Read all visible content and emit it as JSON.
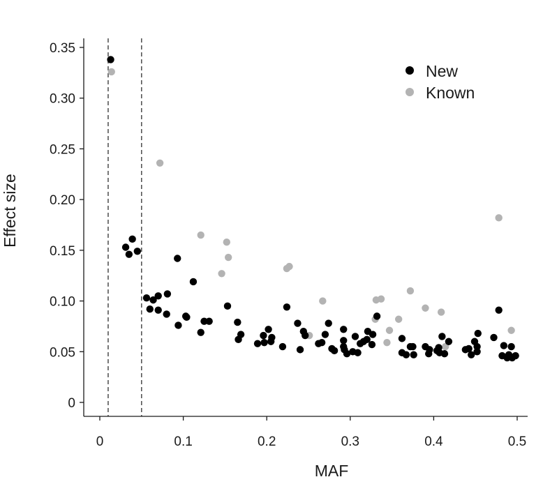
{
  "chart_data": {
    "type": "scatter",
    "xlabel": "MAF",
    "ylabel": "Effect size",
    "xlim": [
      0,
      0.5
    ],
    "ylim": [
      0,
      0.35
    ],
    "x_ticks": [
      0,
      0.1,
      0.2,
      0.3,
      0.4,
      0.5
    ],
    "x_tick_labels": [
      "0",
      "0.1",
      "0.2",
      "0.3",
      "0.4",
      "0.5"
    ],
    "y_ticks": [
      0,
      0.05,
      0.1,
      0.15,
      0.2,
      0.25,
      0.3,
      0.35
    ],
    "y_tick_labels": [
      "0",
      "0.05",
      "0.10",
      "0.15",
      "0.20",
      "0.25",
      "0.30",
      "0.35"
    ],
    "vlines": [
      0.01,
      0.05
    ],
    "vline_style": "dashed",
    "legend_position": "top-right",
    "series": [
      {
        "name": "New",
        "color": "#000000",
        "points": [
          [
            0.013,
            0.338
          ],
          [
            0.031,
            0.153
          ],
          [
            0.035,
            0.146
          ],
          [
            0.039,
            0.161
          ],
          [
            0.045,
            0.149
          ],
          [
            0.056,
            0.103
          ],
          [
            0.06,
            0.092
          ],
          [
            0.064,
            0.101
          ],
          [
            0.07,
            0.105
          ],
          [
            0.07,
            0.091
          ],
          [
            0.08,
            0.087
          ],
          [
            0.081,
            0.107
          ],
          [
            0.093,
            0.142
          ],
          [
            0.094,
            0.076
          ],
          [
            0.103,
            0.085
          ],
          [
            0.104,
            0.084
          ],
          [
            0.112,
            0.119
          ],
          [
            0.121,
            0.069
          ],
          [
            0.125,
            0.08
          ],
          [
            0.131,
            0.08
          ],
          [
            0.153,
            0.095
          ],
          [
            0.165,
            0.079
          ],
          [
            0.166,
            0.062
          ],
          [
            0.169,
            0.067
          ],
          [
            0.189,
            0.058
          ],
          [
            0.196,
            0.066
          ],
          [
            0.197,
            0.059
          ],
          [
            0.202,
            0.072
          ],
          [
            0.205,
            0.06
          ],
          [
            0.206,
            0.064
          ],
          [
            0.219,
            0.055
          ],
          [
            0.224,
            0.094
          ],
          [
            0.237,
            0.078
          ],
          [
            0.24,
            0.052
          ],
          [
            0.244,
            0.07
          ],
          [
            0.246,
            0.066
          ],
          [
            0.262,
            0.058
          ],
          [
            0.266,
            0.059
          ],
          [
            0.27,
            0.067
          ],
          [
            0.274,
            0.078
          ],
          [
            0.278,
            0.053
          ],
          [
            0.281,
            0.051
          ],
          [
            0.292,
            0.072
          ],
          [
            0.292,
            0.061
          ],
          [
            0.292,
            0.055
          ],
          [
            0.293,
            0.052
          ],
          [
            0.296,
            0.048
          ],
          [
            0.303,
            0.05
          ],
          [
            0.306,
            0.065
          ],
          [
            0.309,
            0.049
          ],
          [
            0.312,
            0.058
          ],
          [
            0.316,
            0.06
          ],
          [
            0.32,
            0.062
          ],
          [
            0.321,
            0.07
          ],
          [
            0.326,
            0.057
          ],
          [
            0.327,
            0.067
          ],
          [
            0.332,
            0.085
          ],
          [
            0.362,
            0.063
          ],
          [
            0.362,
            0.049
          ],
          [
            0.367,
            0.047
          ],
          [
            0.372,
            0.055
          ],
          [
            0.375,
            0.055
          ],
          [
            0.376,
            0.047
          ],
          [
            0.39,
            0.055
          ],
          [
            0.394,
            0.048
          ],
          [
            0.395,
            0.052
          ],
          [
            0.404,
            0.051
          ],
          [
            0.406,
            0.054
          ],
          [
            0.407,
            0.049
          ],
          [
            0.41,
            0.065
          ],
          [
            0.413,
            0.048
          ],
          [
            0.418,
            0.06
          ],
          [
            0.438,
            0.052
          ],
          [
            0.442,
            0.053
          ],
          [
            0.445,
            0.047
          ],
          [
            0.449,
            0.06
          ],
          [
            0.452,
            0.055
          ],
          [
            0.452,
            0.05
          ],
          [
            0.453,
            0.068
          ],
          [
            0.472,
            0.064
          ],
          [
            0.478,
            0.091
          ],
          [
            0.482,
            0.046
          ],
          [
            0.484,
            0.056
          ],
          [
            0.488,
            0.044
          ],
          [
            0.49,
            0.047
          ],
          [
            0.493,
            0.055
          ],
          [
            0.494,
            0.044
          ],
          [
            0.498,
            0.046
          ]
        ]
      },
      {
        "name": "Known",
        "color": "#b3b3b3",
        "points": [
          [
            0.014,
            0.326
          ],
          [
            0.072,
            0.236
          ],
          [
            0.121,
            0.165
          ],
          [
            0.146,
            0.127
          ],
          [
            0.152,
            0.158
          ],
          [
            0.154,
            0.143
          ],
          [
            0.224,
            0.132
          ],
          [
            0.227,
            0.134
          ],
          [
            0.251,
            0.066
          ],
          [
            0.267,
            0.1
          ],
          [
            0.33,
            0.082
          ],
          [
            0.331,
            0.101
          ],
          [
            0.337,
            0.102
          ],
          [
            0.344,
            0.059
          ],
          [
            0.347,
            0.071
          ],
          [
            0.358,
            0.082
          ],
          [
            0.372,
            0.11
          ],
          [
            0.39,
            0.093
          ],
          [
            0.409,
            0.089
          ],
          [
            0.414,
            0.055
          ],
          [
            0.478,
            0.182
          ],
          [
            0.493,
            0.071
          ]
        ]
      }
    ]
  }
}
